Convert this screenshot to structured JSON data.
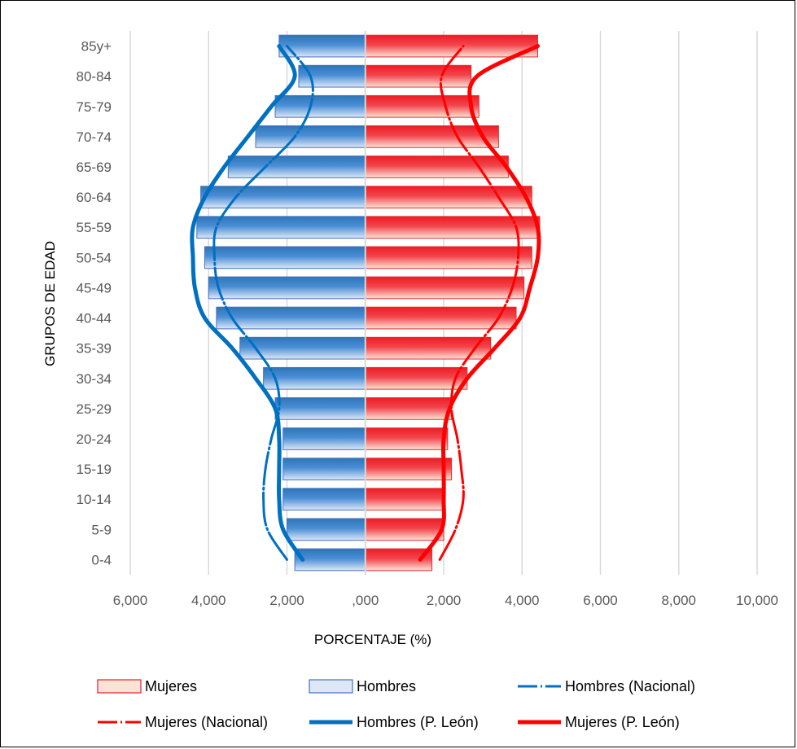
{
  "chart_data": {
    "type": "bar",
    "orientation": "horizontal-population-pyramid",
    "categories": [
      "0-4",
      "5-9",
      "10-14",
      "15-19",
      "20-24",
      "25-29",
      "30-34",
      "35-39",
      "40-44",
      "45-49",
      "50-54",
      "55-59",
      "60-64",
      "65-69",
      "70-74",
      "75-79",
      "80-84",
      "85y+"
    ],
    "xlabel": "PORCENTAJE (%)",
    "ylabel": "GRUPOS DE EDAD",
    "xlim": [
      -6,
      10
    ],
    "x_ticks": [
      -6,
      -4,
      -2,
      0,
      2,
      4,
      6,
      8,
      10
    ],
    "x_tick_labels": [
      "6,000",
      "4,000",
      "2,000",
      ",000",
      "2,000",
      "4,000",
      "6,000",
      "8,000",
      "10,000"
    ],
    "grid": "vertical",
    "legend_position": "bottom",
    "series": [
      {
        "name": "Mujeres",
        "kind": "bar-outline",
        "side": "right",
        "values": [
          1.7,
          2.0,
          2.0,
          2.2,
          2.1,
          2.2,
          2.6,
          3.2,
          3.85,
          4.05,
          4.25,
          4.45,
          4.25,
          3.65,
          3.4,
          2.9,
          2.7,
          4.4
        ]
      },
      {
        "name": "Hombres",
        "kind": "bar-outline",
        "side": "left",
        "values": [
          1.8,
          2.0,
          2.1,
          2.1,
          2.1,
          2.3,
          2.6,
          3.2,
          3.8,
          4.0,
          4.1,
          4.3,
          4.2,
          3.5,
          2.8,
          2.3,
          1.7,
          2.2
        ]
      },
      {
        "name": "Hombres (Nacional)",
        "kind": "line",
        "side": "left",
        "values": [
          2.0,
          2.5,
          2.6,
          2.55,
          2.4,
          2.2,
          2.3,
          2.8,
          3.4,
          3.75,
          3.85,
          3.8,
          3.3,
          2.55,
          1.8,
          1.4,
          1.4,
          2.0
        ]
      },
      {
        "name": "Mujeres (Nacional)",
        "kind": "line",
        "side": "right",
        "values": [
          1.9,
          2.3,
          2.5,
          2.45,
          2.35,
          2.2,
          2.3,
          2.8,
          3.4,
          3.75,
          3.9,
          3.85,
          3.4,
          2.9,
          2.35,
          2.05,
          1.95,
          2.5
        ]
      },
      {
        "name": "Hombres (P. León)",
        "kind": "line",
        "side": "left",
        "values": [
          1.6,
          2.1,
          2.2,
          2.2,
          2.2,
          2.3,
          2.8,
          3.4,
          4.1,
          4.35,
          4.4,
          4.4,
          4.1,
          3.6,
          3.0,
          2.4,
          1.8,
          2.2
        ]
      },
      {
        "name": "Mujeres (P. León)",
        "kind": "line",
        "side": "right",
        "values": [
          1.4,
          1.95,
          2.0,
          2.0,
          2.0,
          2.15,
          2.6,
          3.3,
          3.95,
          4.2,
          4.4,
          4.4,
          4.1,
          3.6,
          3.0,
          2.7,
          2.85,
          4.4
        ]
      }
    ],
    "colors": {
      "hombres_bar_dark": "#2e75b6",
      "hombres_bar_light": "#dde7f5",
      "mujeres_bar_dark": "#ee1c25",
      "mujeres_bar_light": "#fbe3d6",
      "hombres_line": "#0070c0",
      "mujeres_line": "#ff0000",
      "grid": "#d9d9d9",
      "center_line": "#d9d9d9"
    }
  }
}
